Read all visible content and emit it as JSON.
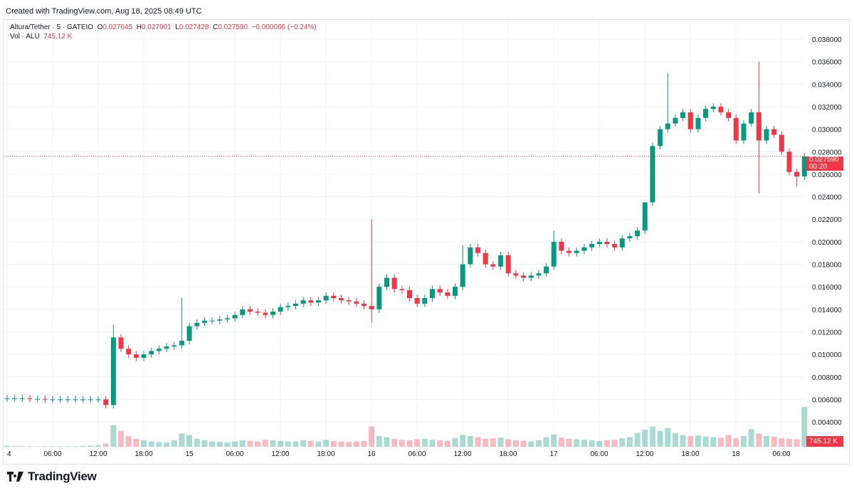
{
  "created": "Created with TradingView.com, Aug 18, 2025 08:49 UTC",
  "legend": {
    "symbol": "Altura/Tether · 5 · GATEIO",
    "o_label": "O",
    "o": "0.027645",
    "h_label": "H",
    "h": "0.027901",
    "l_label": "L",
    "l": "0.027428",
    "c_label": "C",
    "c": "0.027590",
    "change": "−0.000066 (−0.24%)",
    "vol_label": "Vol · ALU",
    "vol": "745.12 K"
  },
  "price_tag": {
    "price": "0.027590",
    "countdown": "00:20"
  },
  "volume_tag": "745.12 K",
  "logo": "TradingView",
  "colors": {
    "up": "#089981",
    "down": "#f23645",
    "grid": "#f0f3fa"
  },
  "chart_data": {
    "type": "candlestick",
    "interval": "5",
    "y_ticks": [
      "0.038000",
      "0.036000",
      "0.034000",
      "0.032000",
      "0.030000",
      "0.028000",
      "0.026000",
      "0.024000",
      "0.022000",
      "0.020000",
      "0.018000",
      "0.016000",
      "0.014000",
      "0.012000",
      "0.010000",
      "0.008000",
      "0.006000",
      "0.004000"
    ],
    "ylim": [
      0.004,
      0.038
    ],
    "x_ticks": [
      "4",
      "06:00",
      "12:00",
      "18:00",
      "15",
      "06:00",
      "12:00",
      "18:00",
      "16",
      "06:00",
      "12:00",
      "18:00",
      "17",
      "06:00",
      "12:00",
      "18:00",
      "18",
      "06:00"
    ],
    "last_price": 0.02759,
    "hourly_close": [
      0.0061,
      0.0061,
      0.0061,
      0.00605,
      0.00605,
      0.006,
      0.006,
      0.006,
      0.006,
      0.006,
      0.006,
      0.006,
      0.006,
      0.0055,
      0.0115,
      0.0105,
      0.01,
      0.0097,
      0.01,
      0.0103,
      0.0105,
      0.0107,
      0.0108,
      0.0112,
      0.0125,
      0.0128,
      0.013,
      0.013,
      0.0131,
      0.0132,
      0.0135,
      0.014,
      0.0138,
      0.0137,
      0.0135,
      0.0138,
      0.0142,
      0.0143,
      0.0145,
      0.0148,
      0.0146,
      0.0148,
      0.0152,
      0.015,
      0.0148,
      0.0147,
      0.0145,
      0.0143,
      0.014,
      0.016,
      0.0168,
      0.0158,
      0.0157,
      0.015,
      0.0145,
      0.015,
      0.0158,
      0.0155,
      0.0152,
      0.016,
      0.018,
      0.0195,
      0.019,
      0.018,
      0.0178,
      0.0188,
      0.0172,
      0.017,
      0.0168,
      0.017,
      0.0172,
      0.0178,
      0.02,
      0.0192,
      0.019,
      0.0192,
      0.0195,
      0.0198,
      0.02,
      0.0198,
      0.0195,
      0.0203,
      0.0205,
      0.021,
      0.0235,
      0.0285,
      0.03,
      0.0305,
      0.031,
      0.0315,
      0.03,
      0.031,
      0.0318,
      0.032,
      0.0315,
      0.031,
      0.029,
      0.0305,
      0.0315,
      0.029,
      0.03,
      0.0295,
      0.028,
      0.0262,
      0.0258,
      0.02759
    ],
    "spikes": [
      {
        "hour": 13,
        "low": 0.0052
      },
      {
        "hour": 14,
        "high": 0.0126
      },
      {
        "hour": 23,
        "high": 0.015
      },
      {
        "hour": 48,
        "high": 0.022,
        "low": 0.0128
      },
      {
        "hour": 60,
        "high": 0.0197
      },
      {
        "hour": 72,
        "high": 0.021
      },
      {
        "hour": 84,
        "high": 0.0228
      },
      {
        "hour": 87,
        "high": 0.035
      },
      {
        "hour": 99,
        "high": 0.036,
        "low": 0.0243
      },
      {
        "hour": 104,
        "low": 0.0249
      }
    ],
    "hourly_volume_k": [
      20,
      15,
      12,
      10,
      10,
      8,
      10,
      12,
      10,
      12,
      15,
      20,
      25,
      60,
      400,
      300,
      200,
      150,
      120,
      100,
      90,
      80,
      120,
      250,
      220,
      150,
      120,
      100,
      90,
      80,
      100,
      120,
      110,
      100,
      130,
      120,
      110,
      100,
      100,
      120,
      110,
      100,
      130,
      110,
      100,
      90,
      100,
      110,
      380,
      200,
      180,
      150,
      130,
      120,
      140,
      150,
      130,
      120,
      110,
      160,
      220,
      200,
      180,
      150,
      160,
      170,
      140,
      120,
      110,
      100,
      120,
      180,
      230,
      170,
      150,
      140,
      130,
      120,
      110,
      120,
      130,
      160,
      180,
      260,
      320,
      380,
      300,
      350,
      260,
      220,
      200,
      210,
      190,
      180,
      170,
      220,
      160,
      200,
      330,
      250,
      200,
      190,
      160,
      150,
      140,
      745.12
    ]
  }
}
